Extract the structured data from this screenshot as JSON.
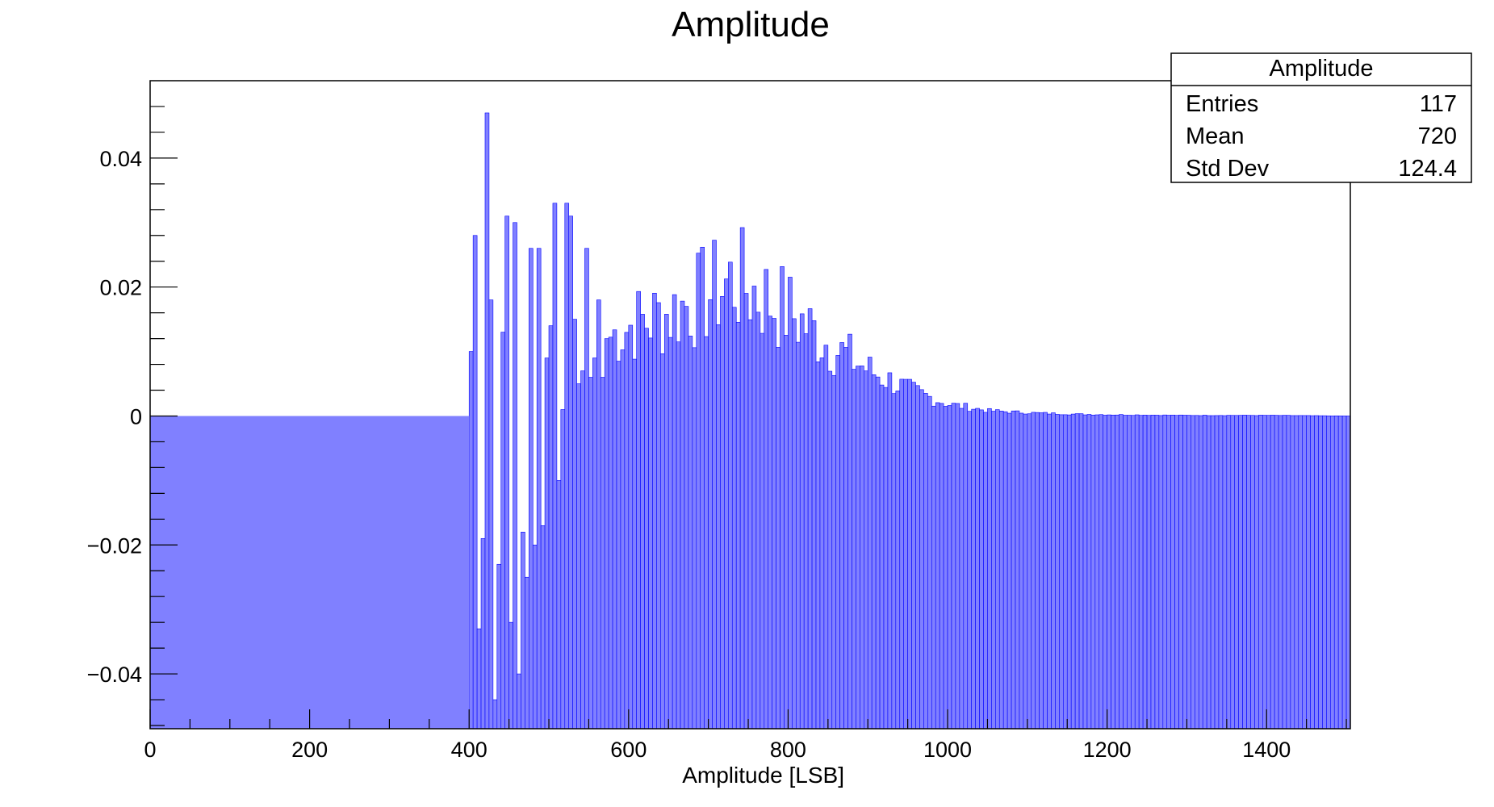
{
  "chart_data": {
    "type": "bar",
    "title": "Amplitude",
    "xlabel": "Amplitude [LSB]",
    "ylabel": "",
    "xlim": [
      0,
      1505
    ],
    "ylim": [
      -0.0485,
      0.052
    ],
    "x_ticks": [
      "0",
      "200",
      "400",
      "600",
      "800",
      "1000",
      "1200",
      "1400"
    ],
    "y_ticks": [
      "−0.04",
      "−0.02",
      "0",
      "0.02",
      "0.04"
    ],
    "bar_color": "#8080ff",
    "bar_edge_color": "#0000ff",
    "x": [
      400,
      405,
      410,
      415,
      420,
      425,
      430,
      435,
      440,
      445,
      450,
      455,
      460,
      465,
      470,
      475,
      480,
      485,
      490,
      495,
      500,
      505,
      510,
      515,
      520,
      525,
      530,
      535,
      540,
      545,
      550,
      555,
      560,
      565,
      570
    ],
    "values": [
      0.01,
      0.028,
      -0.033,
      -0.019,
      0.047,
      0.018,
      -0.044,
      -0.023,
      0.013,
      0.031,
      -0.032,
      0.03,
      -0.04,
      -0.018,
      -0.025,
      0.026,
      -0.02,
      0.026,
      -0.017,
      0.009,
      0.014,
      0.033,
      -0.01,
      0.001,
      0.033,
      0.031,
      0.015,
      0.005,
      0.007,
      0.026,
      0.006,
      0.009,
      0.018,
      0.006,
      0.012
    ],
    "shape_x": [
      570,
      600,
      650,
      700,
      730,
      760,
      800,
      850,
      900,
      950,
      1000,
      1050,
      1100,
      1150,
      1200,
      1300,
      1400,
      1505
    ],
    "shape_y": [
      0.012,
      0.014,
      0.016,
      0.019,
      0.021,
      0.019,
      0.016,
      0.011,
      0.007,
      0.004,
      0.0018,
      0.0008,
      0.0005,
      0.0003,
      0.0002,
      0.0001,
      0.0001,
      0.0
    ],
    "stats": {
      "title": "Amplitude",
      "rows": [
        {
          "label": "Entries",
          "value": "117"
        },
        {
          "label": "Mean",
          "value": "720"
        },
        {
          "label": "Std Dev",
          "value": "124.4"
        }
      ]
    }
  }
}
